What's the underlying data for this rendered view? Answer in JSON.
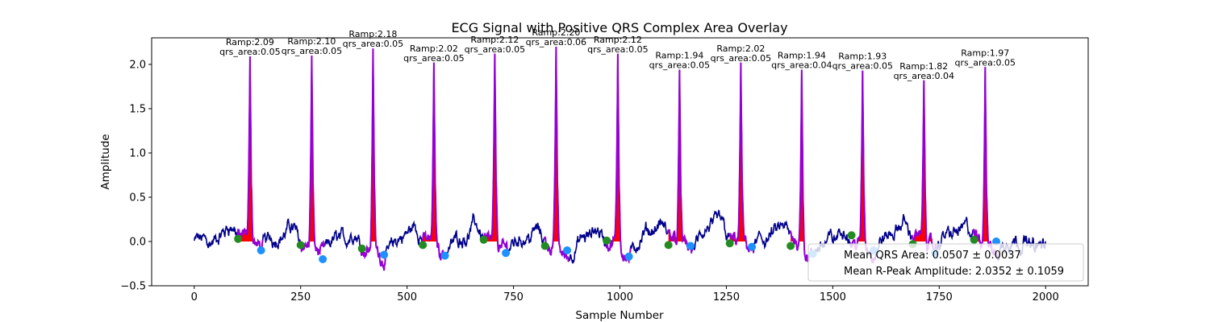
{
  "chart_data": {
    "type": "line",
    "title": "ECG Signal with Positive QRS Complex Area Overlay",
    "xlabel": "Sample Number",
    "ylabel": "Amplitude",
    "xlim": [
      -100,
      2100
    ],
    "ylim": [
      -0.5,
      2.3
    ],
    "x_ticks": [
      0,
      250,
      500,
      750,
      1000,
      1250,
      1500,
      1750,
      2000
    ],
    "y_ticks": [
      -0.5,
      0.0,
      0.5,
      1.0,
      1.5,
      2.0
    ],
    "x_tick_labels": [
      "0",
      "250",
      "500",
      "750",
      "1000",
      "1250",
      "1500",
      "1750",
      "2000"
    ],
    "y_tick_labels": [
      "−0.5",
      "0.0",
      "0.5",
      "1.0",
      "1.5",
      "2.0"
    ],
    "grid": false,
    "series_colors": {
      "ecg": "#00008b",
      "qrs_segment": "#9400d3",
      "qrs_area_fill": "#ff0000",
      "onset_marker": "#228b22",
      "offset_marker": "#1e90ff"
    },
    "beats": [
      {
        "r": 131,
        "ramp": 2.09,
        "onset": 103,
        "offset": 157,
        "onset_y": 0.03,
        "offset_y": -0.1,
        "label_ramp": "Ramp:2.09",
        "label_area": "qrs_area:0.05"
      },
      {
        "r": 276,
        "ramp": 2.1,
        "onset": 250,
        "offset": 302,
        "onset_y": -0.04,
        "offset_y": -0.2,
        "label_ramp": "Ramp:2.10",
        "label_area": "qrs_area:0.05"
      },
      {
        "r": 420,
        "ramp": 2.18,
        "onset": 394,
        "offset": 446,
        "onset_y": -0.08,
        "offset_y": -0.15,
        "label_ramp": "Ramp:2.18",
        "label_area": "qrs_area:0.05"
      },
      {
        "r": 563,
        "ramp": 2.02,
        "onset": 537,
        "offset": 589,
        "onset_y": -0.04,
        "offset_y": -0.16,
        "label_ramp": "Ramp:2.02",
        "label_area": "qrs_area:0.05"
      },
      {
        "r": 706,
        "ramp": 2.12,
        "onset": 680,
        "offset": 732,
        "onset_y": 0.02,
        "offset_y": -0.13,
        "label_ramp": "Ramp:2.12",
        "label_area": "qrs_area:0.05"
      },
      {
        "r": 850,
        "ramp": 2.2,
        "onset": 824,
        "offset": 876,
        "onset_y": -0.05,
        "offset_y": -0.1,
        "label_ramp": "Ramp:2.20",
        "label_area": "qrs_area:0.06"
      },
      {
        "r": 995,
        "ramp": 2.12,
        "onset": 969,
        "offset": 1021,
        "onset_y": 0.01,
        "offset_y": -0.17,
        "label_ramp": "Ramp:2.12",
        "label_area": "qrs_area:0.05"
      },
      {
        "r": 1140,
        "ramp": 1.94,
        "onset": 1114,
        "offset": 1166,
        "onset_y": -0.04,
        "offset_y": -0.05,
        "label_ramp": "Ramp:1.94",
        "label_area": "qrs_area:0.05"
      },
      {
        "r": 1284,
        "ramp": 2.02,
        "onset": 1258,
        "offset": 1310,
        "onset_y": -0.02,
        "offset_y": -0.06,
        "label_ramp": "Ramp:2.02",
        "label_area": "qrs_area:0.05"
      },
      {
        "r": 1427,
        "ramp": 1.94,
        "onset": 1401,
        "offset": 1453,
        "onset_y": -0.05,
        "offset_y": -0.14,
        "label_ramp": "Ramp:1.94",
        "label_area": "qrs_area:0.04"
      },
      {
        "r": 1570,
        "ramp": 1.93,
        "onset": 1544,
        "offset": 1596,
        "onset_y": 0.07,
        "offset_y": -0.1,
        "label_ramp": "Ramp:1.93",
        "label_area": "qrs_area:0.05"
      },
      {
        "r": 1714,
        "ramp": 1.82,
        "onset": 1688,
        "offset": 1740,
        "onset_y": -0.03,
        "offset_y": -0.13,
        "label_ramp": "Ramp:1.82",
        "label_area": "qrs_area:0.04"
      },
      {
        "r": 1858,
        "ramp": 1.97,
        "onset": 1832,
        "offset": 1884,
        "onset_y": 0.02,
        "offset_y": 0.0,
        "label_ramp": "Ramp:1.97",
        "label_area": "qrs_area:0.05"
      }
    ],
    "legend": {
      "placement": "lower right",
      "entries": [
        "Mean QRS Area: 0.0507 ± 0.0037",
        "Mean R-Peak Amplitude: 2.0352 ± 0.1059"
      ]
    }
  }
}
